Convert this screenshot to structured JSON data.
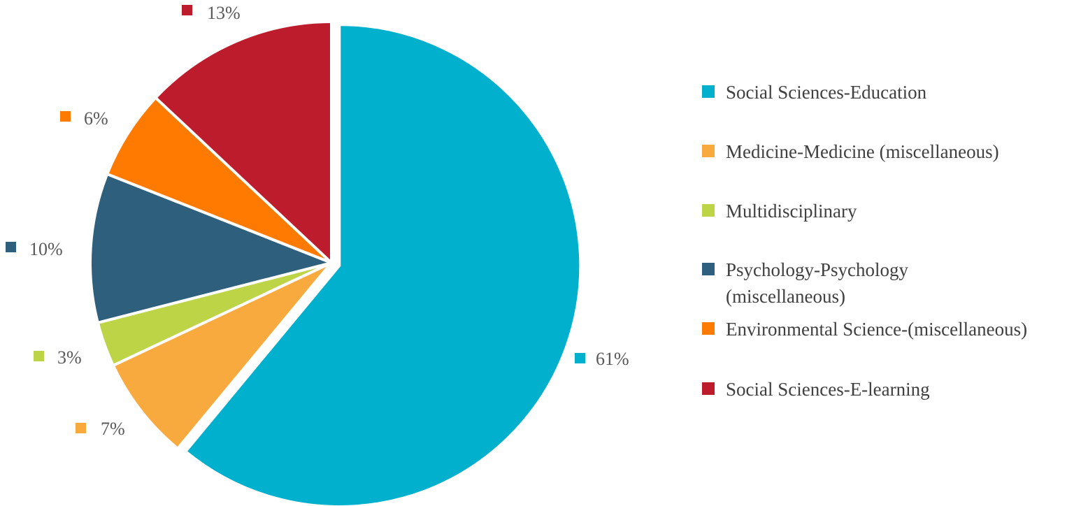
{
  "chart_data": {
    "type": "pie",
    "title": "",
    "exploded_slice": "Social Sciences-Education",
    "start_angle_deg": 0,
    "direction": "clockwise",
    "legend_position": "right",
    "slices": [
      {
        "name": "Social Sciences-Education",
        "value": 61,
        "label": "61%",
        "color": "#00B0CC"
      },
      {
        "name": "Medicine-Medicine (miscellaneous)",
        "value": 7,
        "label": "7%",
        "color": "#F9AA3E"
      },
      {
        "name": "Multidisciplinary",
        "value": 3,
        "label": "3%",
        "color": "#BED447"
      },
      {
        "name": "Psychology-Psychology (miscellaneous)",
        "value": 10,
        "label": "10%",
        "color": "#2E5F7C"
      },
      {
        "name": "Environmental Science-(miscellaneous)",
        "value": 6,
        "label": "6%",
        "color": "#FF7A00"
      },
      {
        "name": "Social Sciences-E-learning",
        "value": 13,
        "label": "13%",
        "color": "#BD1C2C"
      }
    ],
    "legend": [
      {
        "lines": [
          "Social Sciences-Education"
        ]
      },
      {
        "lines": [
          "Medicine-Medicine (miscellaneous)"
        ]
      },
      {
        "lines": [
          "Multidisciplinary"
        ]
      },
      {
        "lines": [
          "Psychology-Psychology",
          "(miscellaneous)"
        ]
      },
      {
        "lines": [
          "Environmental Science-(miscellaneous)"
        ]
      },
      {
        "lines": [
          "Social Sciences-E-learning"
        ]
      }
    ]
  }
}
